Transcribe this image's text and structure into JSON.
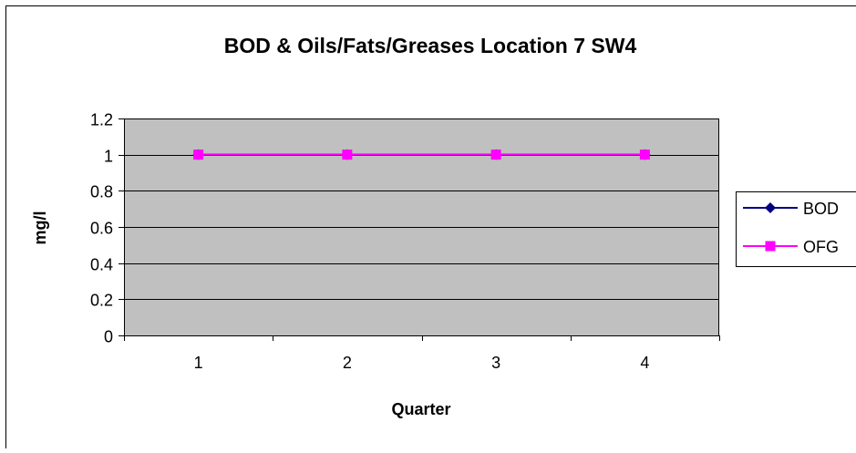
{
  "chart_data": {
    "type": "line",
    "title": "BOD & Oils/Fats/Greases Location 7 SW4",
    "xlabel": "Quarter",
    "ylabel": "mg/l",
    "categories": [
      "1",
      "2",
      "3",
      "4"
    ],
    "yticks": [
      "0",
      "0.2",
      "0.4",
      "0.6",
      "0.8",
      "1",
      "1.2"
    ],
    "ylim": [
      0,
      1.2
    ],
    "grid": true,
    "legend_position": "right",
    "series": [
      {
        "name": "BOD",
        "values": [
          1,
          1,
          1,
          1
        ],
        "color": "#000080",
        "marker": "diamond"
      },
      {
        "name": "OFG",
        "values": [
          1,
          1,
          1,
          1
        ],
        "color": "#ff00ff",
        "marker": "square"
      }
    ],
    "colors": {
      "plot_background": "#c0c0c0",
      "gridline": "#000000"
    }
  }
}
